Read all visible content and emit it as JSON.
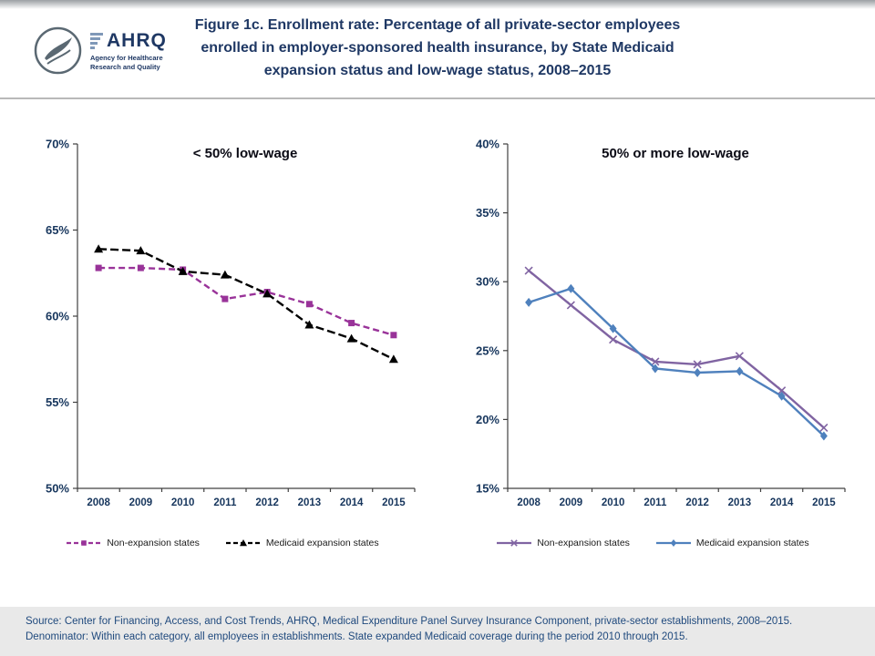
{
  "page": {
    "title_lines": [
      "Figure 1c. Enrollment rate: Percentage of all private-sector employees",
      "enrolled in employer-sponsored health insurance, by State Medicaid",
      "expansion status and low-wage status, 2008–2015"
    ]
  },
  "logos": {
    "ahrq_acronym": "AHRQ",
    "ahrq_tagline_line1": "Agency for Healthcare",
    "ahrq_tagline_line2": "Research and Quality"
  },
  "colors": {
    "title": "#1F3864",
    "axis": "#404040",
    "tick_label": "#17365D",
    "left_nonexpansion": "#993399",
    "left_expansion": "#000000",
    "right_nonexpansion": "#8064A2",
    "right_expansion": "#4F81BD",
    "footer_text": "#1F497D"
  },
  "chart_data": [
    {
      "type": "line",
      "title": "< 50% low-wage",
      "categories": [
        "2008",
        "2009",
        "2010",
        "2011",
        "2012",
        "2013",
        "2014",
        "2015"
      ],
      "ylim": [
        50,
        70
      ],
      "ytick_labels": [
        "50%",
        "55%",
        "60%",
        "65%",
        "70%"
      ],
      "grid": false,
      "legend_position": "bottom",
      "series": [
        {
          "name": "Non-expansion states",
          "color": "#993399",
          "dash": "7,4",
          "marker": "square",
          "values": [
            62.8,
            62.8,
            62.7,
            61.0,
            61.4,
            60.7,
            59.6,
            58.9
          ]
        },
        {
          "name": "Medicaid expansion states",
          "color": "#000000",
          "dash": "9,4",
          "marker": "triangle",
          "values": [
            63.9,
            63.8,
            62.6,
            62.4,
            61.3,
            59.5,
            58.7,
            57.5
          ]
        }
      ]
    },
    {
      "type": "line",
      "title": "50% or more low-wage",
      "categories": [
        "2008",
        "2009",
        "2010",
        "2011",
        "2012",
        "2013",
        "2014",
        "2015"
      ],
      "ylim": [
        15,
        40
      ],
      "ytick_labels": [
        "15%",
        "20%",
        "25%",
        "30%",
        "35%",
        "40%"
      ],
      "grid": false,
      "legend_position": "bottom",
      "series": [
        {
          "name": "Non-expansion states",
          "color": "#8064A2",
          "dash": "",
          "marker": "x",
          "values": [
            30.8,
            28.3,
            25.8,
            24.2,
            24.0,
            24.6,
            22.1,
            19.4
          ]
        },
        {
          "name": "Medicaid expansion states",
          "color": "#4F81BD",
          "dash": "",
          "marker": "diamond",
          "values": [
            28.5,
            29.5,
            26.6,
            23.7,
            23.4,
            23.5,
            21.7,
            18.8
          ]
        }
      ]
    }
  ],
  "footer": {
    "line1": "Source: Center for Financing, Access, and Cost Trends, AHRQ, Medical Expenditure Panel Survey Insurance Component, private-sector establishments, 2008–2015.",
    "line2": "Denominator: Within each category, all employees in establishments. State expanded Medicaid coverage during the period 2010 through 2015."
  }
}
